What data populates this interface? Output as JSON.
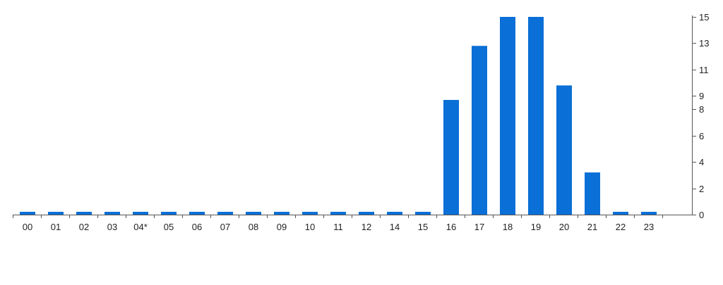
{
  "chart_data": {
    "type": "bar",
    "categories": [
      "00",
      "01",
      "02",
      "03",
      "04*",
      "05",
      "06",
      "07",
      "08",
      "09",
      "10",
      "11",
      "12",
      "14",
      "15",
      "16",
      "17",
      "18",
      "19",
      "20",
      "21",
      "22",
      "23"
    ],
    "values": [
      0,
      0,
      0,
      0,
      0,
      0,
      0,
      0,
      0,
      0,
      0,
      0,
      0,
      0,
      0,
      8.7,
      12.8,
      15,
      15,
      9.8,
      3.2,
      0,
      0
    ],
    "ylim": [
      0,
      15
    ],
    "yticks": [
      0,
      2,
      4,
      6,
      8,
      9,
      11,
      13,
      15
    ],
    "y_axis_side": "right",
    "grid": false,
    "bar_color": "#0a6fd6",
    "axis_color": "#555555"
  }
}
